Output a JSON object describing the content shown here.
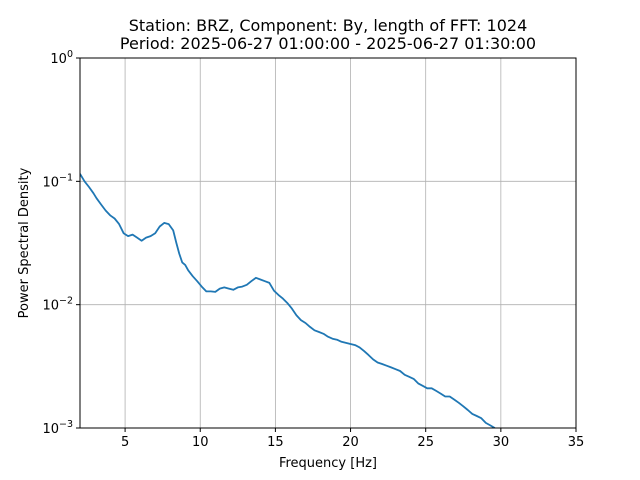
{
  "chart_data": {
    "type": "line",
    "title_line1": "Station: BRZ, Component: By, length of FFT: 1024",
    "title_line2": "Period: 2025-06-27 01:00:00 - 2025-06-27 01:30:00",
    "xlabel": "Frequency [Hz]",
    "ylabel": "Power Spectral Density",
    "xlim": [
      2,
      35
    ],
    "ylim": [
      0.001,
      1
    ],
    "yscale": "log",
    "grid": true,
    "line_color": "#1f77b4",
    "x_ticks": [
      {
        "value": 5,
        "label": "5"
      },
      {
        "value": 10,
        "label": "10"
      },
      {
        "value": 15,
        "label": "15"
      },
      {
        "value": 20,
        "label": "20"
      },
      {
        "value": 25,
        "label": "25"
      },
      {
        "value": 30,
        "label": "30"
      },
      {
        "value": 35,
        "label": "35"
      }
    ],
    "y_ticks": [
      {
        "value": 0.001,
        "base": "10",
        "exp": "−3"
      },
      {
        "value": 0.01,
        "base": "10",
        "exp": "−2"
      },
      {
        "value": 0.1,
        "base": "10",
        "exp": "−1"
      },
      {
        "value": 1,
        "base": "10",
        "exp": "0"
      }
    ],
    "series": [
      {
        "x": [
          2.0,
          2.3,
          2.6,
          2.9,
          3.1,
          3.4,
          3.7,
          4.0,
          4.3,
          4.6,
          4.9,
          5.2,
          5.5,
          5.8,
          6.1,
          6.4,
          6.7,
          7.0,
          7.3,
          7.6,
          7.9,
          8.2,
          8.4,
          8.6,
          8.8,
          9.0,
          9.2,
          9.5,
          9.8,
          10.1,
          10.4,
          10.7,
          11.0,
          11.3,
          11.6,
          11.9,
          12.2,
          12.5,
          12.8,
          13.1,
          13.4,
          13.7,
          14.0,
          14.3,
          14.6,
          14.9,
          15.2,
          15.5,
          15.8,
          16.1,
          16.4,
          16.7,
          17.0,
          17.3,
          17.6,
          17.9,
          18.2,
          18.5,
          18.8,
          19.1,
          19.4,
          19.7,
          20.0,
          20.3,
          20.6,
          20.9,
          21.2,
          21.5,
          21.8,
          22.1,
          22.4,
          22.7,
          23.0,
          23.3,
          23.6,
          23.9,
          24.2,
          24.5,
          24.8,
          25.1,
          25.4,
          25.7,
          26.0,
          26.3,
          26.6,
          26.9,
          27.2,
          27.5,
          27.8,
          28.1,
          28.4,
          28.7,
          29.0,
          29.3,
          29.6
        ],
        "y": [
          0.115,
          0.1,
          0.09,
          0.08,
          0.073,
          0.065,
          0.058,
          0.053,
          0.05,
          0.045,
          0.038,
          0.036,
          0.037,
          0.035,
          0.033,
          0.035,
          0.036,
          0.038,
          0.043,
          0.046,
          0.045,
          0.04,
          0.032,
          0.026,
          0.022,
          0.021,
          0.019,
          0.017,
          0.0155,
          0.014,
          0.0128,
          0.0128,
          0.0127,
          0.0135,
          0.0138,
          0.0135,
          0.0132,
          0.0138,
          0.014,
          0.0145,
          0.0155,
          0.0165,
          0.016,
          0.0155,
          0.015,
          0.013,
          0.012,
          0.0112,
          0.0103,
          0.0093,
          0.0082,
          0.0075,
          0.0071,
          0.0066,
          0.0062,
          0.006,
          0.0058,
          0.0055,
          0.0053,
          0.0052,
          0.005,
          0.0049,
          0.0048,
          0.0047,
          0.0045,
          0.0042,
          0.0039,
          0.0036,
          0.0034,
          0.0033,
          0.0032,
          0.0031,
          0.003,
          0.0029,
          0.0027,
          0.0026,
          0.0025,
          0.0023,
          0.0022,
          0.0021,
          0.0021,
          0.002,
          0.0019,
          0.0018,
          0.0018,
          0.0017,
          0.0016,
          0.0015,
          0.0014,
          0.0013,
          0.00125,
          0.0012,
          0.0011,
          0.00105,
          0.001
        ]
      }
    ]
  }
}
